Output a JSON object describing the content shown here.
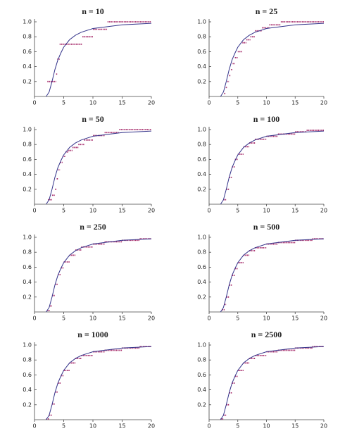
{
  "chart_data": [
    {
      "type": "line",
      "title": "n = 10",
      "xlim": [
        0,
        20
      ],
      "ylim": [
        0,
        1
      ],
      "xticks": [
        0,
        5,
        10,
        15,
        20
      ],
      "yticks": [
        0.2,
        0.4,
        0.6,
        0.8,
        {
          "value": 1,
          "label": "1.0"
        }
      ],
      "series": [
        {
          "color": "#33338a",
          "x": [
            2,
            2.5,
            3,
            3.5,
            4,
            4.5,
            5,
            6,
            7,
            8,
            10,
            12,
            15,
            20
          ],
          "values": [
            0,
            0.06,
            0.2,
            0.36,
            0.49,
            0.58,
            0.66,
            0.76,
            0.82,
            0.86,
            0.91,
            0.93,
            0.96,
            0.98
          ]
        },
        {
          "color": "#a8306e",
          "x": [
            2.2,
            3.7,
            3.9,
            4.3,
            8.2,
            10,
            12.5
          ],
          "values": [
            0.2,
            0.3,
            0.5,
            0.7,
            0.8,
            0.9,
            1.0
          ]
        }
      ]
    },
    {
      "type": "line",
      "title": "n = 25",
      "xlim": [
        0,
        20
      ],
      "ylim": [
        0,
        1
      ],
      "xticks": [
        0,
        5,
        10,
        15,
        20
      ],
      "yticks": [
        0.2,
        0.4,
        0.6,
        0.8,
        {
          "value": 1,
          "label": "1.0"
        }
      ],
      "series": [
        {
          "color": "#33338a",
          "x": [
            2,
            2.5,
            3,
            3.5,
            4,
            4.5,
            5,
            6,
            7,
            8,
            10,
            12,
            15,
            20
          ],
          "values": [
            0,
            0.06,
            0.2,
            0.36,
            0.49,
            0.58,
            0.66,
            0.76,
            0.82,
            0.86,
            0.91,
            0.93,
            0.96,
            0.98
          ]
        },
        {
          "color": "#a8306e",
          "x": [
            2.6,
            2.9,
            3.2,
            3.5,
            3.8,
            4.1,
            4.5,
            5,
            5.8,
            6.5,
            7.2,
            8,
            9.2,
            10.5,
            12.5
          ],
          "values": [
            0.04,
            0.12,
            0.2,
            0.28,
            0.36,
            0.44,
            0.52,
            0.6,
            0.72,
            0.76,
            0.8,
            0.88,
            0.92,
            0.96,
            1.0
          ]
        }
      ]
    },
    {
      "type": "line",
      "title": "n = 50",
      "xlim": [
        0,
        20
      ],
      "ylim": [
        0,
        1
      ],
      "xticks": [
        0,
        5,
        10,
        15,
        20
      ],
      "yticks": [
        0.2,
        0.4,
        0.6,
        0.8,
        {
          "value": 1,
          "label": "1.0"
        }
      ],
      "series": [
        {
          "color": "#33338a",
          "x": [
            2,
            2.5,
            3,
            3.5,
            4,
            4.5,
            5,
            6,
            7,
            8,
            10,
            12,
            15,
            20
          ],
          "values": [
            0,
            0.06,
            0.2,
            0.36,
            0.49,
            0.58,
            0.66,
            0.76,
            0.82,
            0.86,
            0.91,
            0.93,
            0.96,
            0.98
          ]
        },
        {
          "color": "#a8306e",
          "x": [
            2.3,
            3,
            3.5,
            3.8,
            4.1,
            4.4,
            4.8,
            5.3,
            5.8,
            6.5,
            7.5,
            8.5,
            10,
            12,
            14.5
          ],
          "values": [
            0.06,
            0.12,
            0.2,
            0.34,
            0.46,
            0.56,
            0.64,
            0.7,
            0.72,
            0.76,
            0.8,
            0.86,
            0.92,
            0.96,
            1.0
          ]
        }
      ]
    },
    {
      "type": "line",
      "title": "n = 100",
      "xlim": [
        0,
        20
      ],
      "ylim": [
        0,
        1
      ],
      "xticks": [
        0,
        5,
        10,
        15,
        20
      ],
      "yticks": [
        0.2,
        0.4,
        0.6,
        0.8,
        {
          "value": 1,
          "label": "1.0"
        }
      ],
      "series": [
        {
          "color": "#33338a",
          "x": [
            2,
            2.5,
            3,
            3.5,
            4,
            4.5,
            5,
            6,
            7,
            8,
            10,
            12,
            15,
            20
          ],
          "values": [
            0,
            0.06,
            0.2,
            0.36,
            0.49,
            0.58,
            0.66,
            0.76,
            0.82,
            0.86,
            0.91,
            0.93,
            0.96,
            0.98
          ]
        },
        {
          "color": "#a8306e",
          "x": [
            2.5,
            3,
            3.5,
            4,
            4.5,
            5,
            6,
            7,
            8,
            10,
            12,
            15,
            17
          ],
          "values": [
            0.06,
            0.2,
            0.36,
            0.5,
            0.6,
            0.67,
            0.77,
            0.82,
            0.87,
            0.91,
            0.94,
            0.97,
            0.99
          ]
        }
      ]
    },
    {
      "type": "line",
      "title": "n = 250",
      "xlim": [
        0,
        20
      ],
      "ylim": [
        0,
        1
      ],
      "xticks": [
        0,
        5,
        10,
        15,
        20
      ],
      "yticks": [
        0.2,
        0.4,
        0.6,
        0.8,
        {
          "value": 1,
          "label": "1.0"
        }
      ],
      "series": [
        {
          "color": "#33338a",
          "x": [
            2,
            2.5,
            3,
            3.5,
            4,
            4.5,
            5,
            6,
            7,
            8,
            10,
            12,
            15,
            20
          ],
          "values": [
            0,
            0.06,
            0.2,
            0.36,
            0.49,
            0.58,
            0.66,
            0.76,
            0.82,
            0.86,
            0.91,
            0.93,
            0.96,
            0.98
          ]
        },
        {
          "color": "#a8306e",
          "x": [
            2.2,
            2.6,
            3,
            3.5,
            4,
            4.5,
            5,
            6,
            7,
            8,
            10,
            12,
            15,
            18
          ],
          "values": [
            0.02,
            0.08,
            0.22,
            0.37,
            0.5,
            0.59,
            0.67,
            0.76,
            0.83,
            0.87,
            0.91,
            0.94,
            0.96,
            0.98
          ]
        }
      ]
    },
    {
      "type": "line",
      "title": "n = 500",
      "xlim": [
        0,
        20
      ],
      "ylim": [
        0,
        1
      ],
      "xticks": [
        0,
        5,
        10,
        15,
        20
      ],
      "yticks": [
        0.2,
        0.4,
        0.6,
        0.8,
        {
          "value": 1,
          "label": "1.0"
        }
      ],
      "series": [
        {
          "color": "#33338a",
          "x": [
            2,
            2.5,
            3,
            3.5,
            4,
            4.5,
            5,
            6,
            7,
            8,
            10,
            12,
            15,
            20
          ],
          "values": [
            0,
            0.06,
            0.2,
            0.36,
            0.49,
            0.58,
            0.66,
            0.76,
            0.82,
            0.86,
            0.91,
            0.93,
            0.96,
            0.98
          ]
        },
        {
          "color": "#a8306e",
          "x": [
            2.3,
            2.7,
            3,
            3.5,
            4,
            4.5,
            5,
            6,
            7,
            8,
            10,
            12,
            15,
            18
          ],
          "values": [
            0.03,
            0.1,
            0.2,
            0.36,
            0.49,
            0.58,
            0.66,
            0.76,
            0.82,
            0.86,
            0.91,
            0.93,
            0.96,
            0.98
          ]
        }
      ]
    },
    {
      "type": "line",
      "title": "n = 1000",
      "xlim": [
        0,
        20
      ],
      "ylim": [
        0,
        1
      ],
      "xticks": [
        0,
        5,
        10,
        15,
        20
      ],
      "yticks": [
        0.2,
        0.4,
        0.6,
        0.8,
        {
          "value": 1,
          "label": "1.0"
        }
      ],
      "series": [
        {
          "color": "#33338a",
          "x": [
            2,
            2.5,
            3,
            3.5,
            4,
            4.5,
            5,
            6,
            7,
            8,
            10,
            12,
            15,
            20
          ],
          "values": [
            0,
            0.06,
            0.2,
            0.36,
            0.49,
            0.58,
            0.66,
            0.76,
            0.82,
            0.86,
            0.91,
            0.93,
            0.96,
            0.98
          ]
        },
        {
          "color": "#a8306e",
          "x": [
            2,
            2.5,
            3,
            3.5,
            4,
            4.5,
            5,
            6,
            7,
            8,
            10,
            12,
            15,
            18
          ],
          "values": [
            0.01,
            0.06,
            0.21,
            0.37,
            0.49,
            0.59,
            0.66,
            0.76,
            0.82,
            0.86,
            0.91,
            0.93,
            0.96,
            0.98
          ]
        }
      ]
    },
    {
      "type": "line",
      "title": "n = 2500",
      "xlim": [
        0,
        20
      ],
      "ylim": [
        0,
        1
      ],
      "xticks": [
        0,
        5,
        10,
        15,
        20
      ],
      "yticks": [
        0.2,
        0.4,
        0.6,
        0.8,
        {
          "value": 1,
          "label": "1.0"
        }
      ],
      "series": [
        {
          "color": "#33338a",
          "x": [
            2,
            2.5,
            3,
            3.5,
            4,
            4.5,
            5,
            6,
            7,
            8,
            10,
            12,
            15,
            20
          ],
          "values": [
            0,
            0.06,
            0.2,
            0.36,
            0.49,
            0.58,
            0.66,
            0.76,
            0.82,
            0.86,
            0.91,
            0.93,
            0.96,
            0.98
          ]
        },
        {
          "color": "#a8306e",
          "x": [
            2,
            2.5,
            3,
            3.5,
            4,
            4.5,
            5,
            6,
            7,
            8,
            10,
            12,
            15,
            18
          ],
          "values": [
            0.01,
            0.06,
            0.2,
            0.36,
            0.49,
            0.58,
            0.66,
            0.76,
            0.82,
            0.86,
            0.91,
            0.93,
            0.96,
            0.98
          ]
        }
      ]
    }
  ]
}
